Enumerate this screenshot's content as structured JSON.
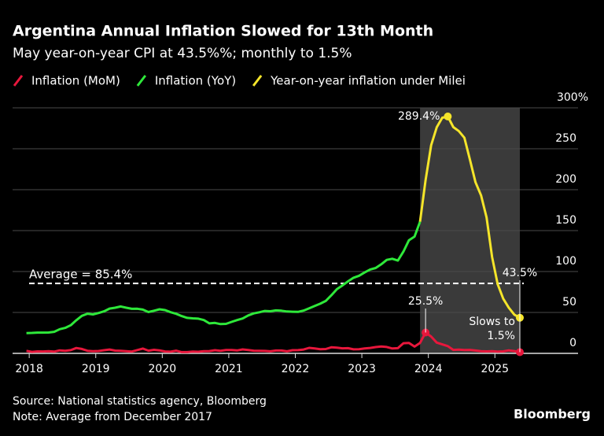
{
  "chart_data": {
    "type": "line",
    "title": "Argentina Annual Inflation Slowed for 13th Month",
    "subtitle": "May year-on-year CPI at 43.5%%; monthly to 1.5%",
    "source": "Source: National statistics agency, Bloomberg",
    "note": "Note: Average from December 2017",
    "brand": "Bloomberg",
    "x": [
      2017.958,
      2018.042,
      2018.125,
      2018.208,
      2018.292,
      2018.375,
      2018.458,
      2018.542,
      2018.625,
      2018.708,
      2018.792,
      2018.875,
      2018.958,
      2019.042,
      2019.125,
      2019.208,
      2019.292,
      2019.375,
      2019.458,
      2019.542,
      2019.625,
      2019.708,
      2019.792,
      2019.875,
      2019.958,
      2020.042,
      2020.125,
      2020.208,
      2020.292,
      2020.375,
      2020.458,
      2020.542,
      2020.625,
      2020.708,
      2020.792,
      2020.875,
      2020.958,
      2021.042,
      2021.125,
      2021.208,
      2021.292,
      2021.375,
      2021.458,
      2021.542,
      2021.625,
      2021.708,
      2021.792,
      2021.875,
      2021.958,
      2022.042,
      2022.125,
      2022.208,
      2022.292,
      2022.375,
      2022.458,
      2022.542,
      2022.625,
      2022.708,
      2022.792,
      2022.875,
      2022.958,
      2023.042,
      2023.125,
      2023.208,
      2023.292,
      2023.375,
      2023.458,
      2023.542,
      2023.625,
      2023.708,
      2023.792,
      2023.875,
      2023.958,
      2024.042,
      2024.125,
      2024.208,
      2024.292,
      2024.375,
      2024.458,
      2024.542,
      2024.625,
      2024.708,
      2024.792,
      2024.875,
      2024.958,
      2025.042,
      2025.125,
      2025.208,
      2025.292,
      2025.375
    ],
    "series": [
      {
        "name": "Inflation (MoM)",
        "color": "#e8173c",
        "values": [
          3.1,
          1.8,
          2.4,
          2.3,
          2.7,
          2.1,
          3.7,
          3.1,
          3.9,
          6.5,
          5.4,
          3.2,
          2.6,
          2.9,
          3.8,
          4.7,
          3.4,
          3.1,
          2.7,
          2.2,
          4.0,
          5.9,
          3.3,
          4.3,
          3.7,
          2.3,
          2.0,
          3.3,
          1.5,
          1.5,
          2.2,
          1.9,
          2.7,
          2.8,
          3.8,
          3.2,
          4.0,
          4.0,
          3.6,
          4.8,
          4.1,
          3.3,
          3.2,
          3.0,
          2.5,
          3.5,
          3.5,
          2.5,
          3.8,
          3.9,
          4.7,
          6.7,
          6.0,
          5.1,
          5.3,
          7.4,
          7.0,
          6.2,
          6.3,
          4.9,
          5.1,
          6.0,
          6.6,
          7.7,
          8.4,
          7.8,
          6.0,
          6.3,
          12.4,
          12.7,
          8.3,
          12.8,
          25.5,
          20.6,
          13.2,
          11.0,
          8.8,
          4.2,
          4.6,
          4.0,
          4.2,
          3.5,
          2.7,
          2.4,
          2.7,
          2.2,
          2.4,
          3.7,
          2.8,
          1.5
        ]
      },
      {
        "name": "Inflation (YoY)",
        "color": "#2ee83a",
        "values": [
          24.8,
          25.0,
          25.4,
          25.4,
          25.5,
          26.3,
          29.5,
          31.2,
          34.4,
          40.5,
          45.9,
          48.5,
          47.6,
          49.3,
          51.3,
          54.7,
          55.8,
          57.3,
          55.8,
          54.4,
          54.5,
          53.5,
          50.5,
          52.1,
          53.8,
          52.9,
          50.3,
          48.4,
          45.6,
          43.4,
          42.8,
          42.4,
          40.7,
          36.6,
          37.2,
          35.8,
          36.1,
          38.5,
          40.7,
          42.6,
          46.3,
          48.8,
          50.2,
          51.8,
          51.4,
          52.5,
          52.1,
          51.2,
          50.9,
          50.7,
          52.3,
          55.1,
          58.0,
          60.7,
          64.0,
          71.0,
          78.5,
          83.0,
          88.0,
          92.4,
          94.8,
          98.8,
          102.5,
          104.3,
          108.8,
          114.2,
          115.6,
          113.4,
          124.4,
          138.3,
          142.7,
          160.9,
          null,
          null,
          null,
          null,
          null,
          null,
          null,
          null,
          null,
          null,
          null,
          null,
          null,
          null,
          null,
          null,
          null,
          null
        ]
      },
      {
        "name": "Year-on-year inflation under Milei",
        "color": "#f5e52a",
        "values": [
          null,
          null,
          null,
          null,
          null,
          null,
          null,
          null,
          null,
          null,
          null,
          null,
          null,
          null,
          null,
          null,
          null,
          null,
          null,
          null,
          null,
          null,
          null,
          null,
          null,
          null,
          null,
          null,
          null,
          null,
          null,
          null,
          null,
          null,
          null,
          null,
          null,
          null,
          null,
          null,
          null,
          null,
          null,
          null,
          null,
          null,
          null,
          null,
          null,
          null,
          null,
          null,
          null,
          null,
          null,
          null,
          null,
          null,
          null,
          null,
          null,
          null,
          null,
          null,
          null,
          null,
          null,
          null,
          null,
          null,
          null,
          160.9,
          211.4,
          254.2,
          276.2,
          287.9,
          289.4,
          276.4,
          271.5,
          263.4,
          236.7,
          209.0,
          193.0,
          166.0,
          117.8,
          84.5,
          66.9,
          55.9,
          47.3,
          43.5
        ]
      }
    ],
    "average": {
      "value": 85.4,
      "label": "Average = 85.4%"
    },
    "annotations": [
      "289.4%",
      "25.5%",
      "43.5%",
      "Slows to 1.5%"
    ],
    "xlim": [
      2017.75,
      2026.25
    ],
    "xticks": [
      2018,
      2019,
      2020,
      2021,
      2022,
      2023,
      2024,
      2025
    ],
    "ylim": [
      0,
      300
    ],
    "yticks": [
      0,
      50,
      100,
      150,
      200,
      250,
      {
        "value": 300,
        "label": "300%"
      }
    ],
    "grid": true,
    "legend": "top-left"
  }
}
